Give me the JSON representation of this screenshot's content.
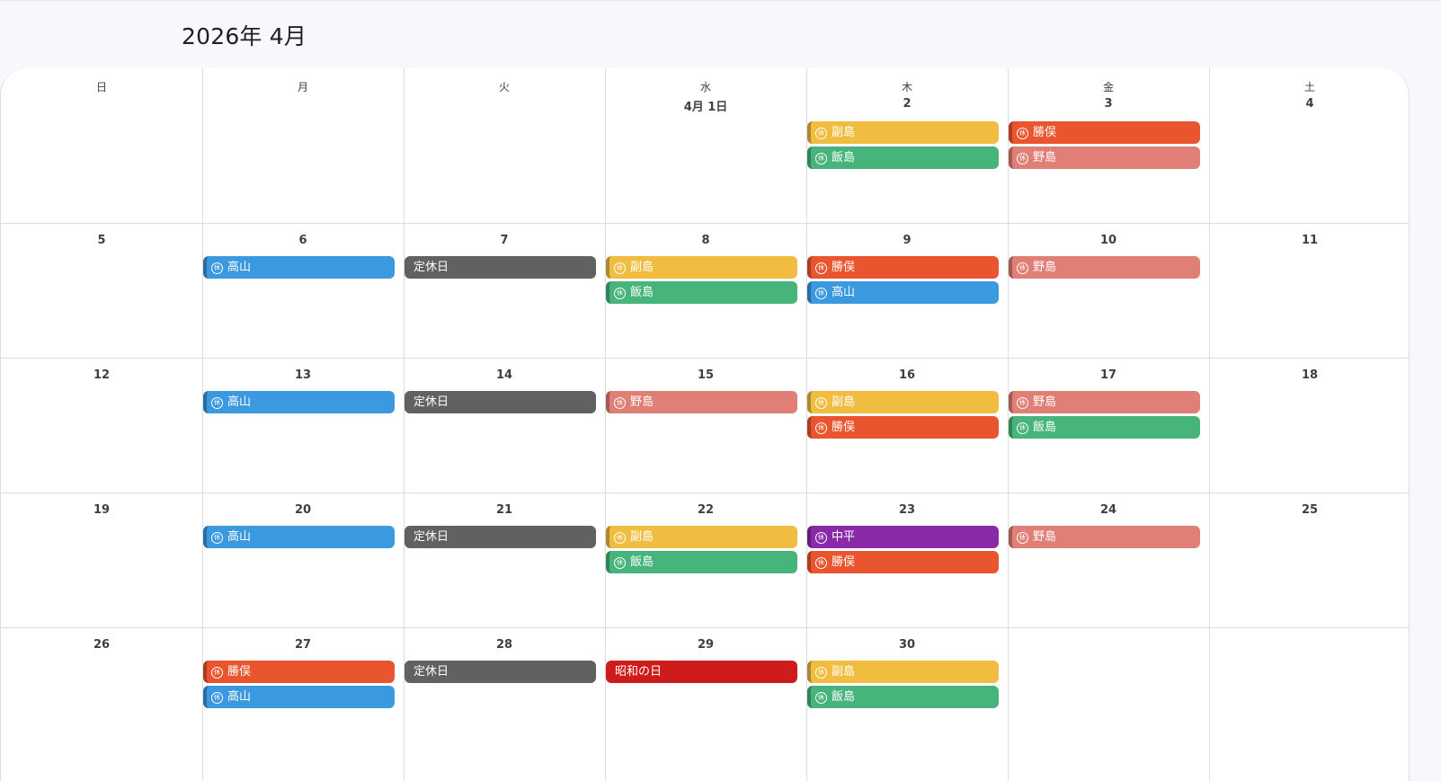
{
  "month_title": "2026年 4月",
  "weekdays": [
    "日",
    "月",
    "火",
    "水",
    "木",
    "金",
    "土"
  ],
  "colors": {
    "yellow": "#f0bd40",
    "green": "#47b47b",
    "orange": "#e9552f",
    "salmon": "#e07f76",
    "blue": "#3b99df",
    "gray": "#616161",
    "purple": "#8b2aa8",
    "red": "#ce1b1b"
  },
  "icon_char": "休",
  "weeks": [
    [
      {
        "day": ""
      },
      {
        "day": ""
      },
      {
        "day": ""
      },
      {
        "day": "4月 1日",
        "events": []
      },
      {
        "day": "2",
        "events": [
          {
            "label": "副島",
            "color": "yellow",
            "icon": true
          },
          {
            "label": "飯島",
            "color": "green",
            "icon": true
          }
        ]
      },
      {
        "day": "3",
        "events": [
          {
            "label": "勝俣",
            "color": "orange",
            "icon": true
          },
          {
            "label": "野島",
            "color": "salmon",
            "icon": true
          }
        ]
      },
      {
        "day": "4",
        "events": []
      }
    ],
    [
      {
        "day": "5",
        "events": []
      },
      {
        "day": "6",
        "events": [
          {
            "label": "高山",
            "color": "blue",
            "icon": true
          }
        ]
      },
      {
        "day": "7",
        "events": [
          {
            "label": "定休日",
            "color": "gray",
            "icon": false
          }
        ]
      },
      {
        "day": "8",
        "events": [
          {
            "label": "副島",
            "color": "yellow",
            "icon": true
          },
          {
            "label": "飯島",
            "color": "green",
            "icon": true
          }
        ]
      },
      {
        "day": "9",
        "events": [
          {
            "label": "勝俣",
            "color": "orange",
            "icon": true
          },
          {
            "label": "高山",
            "color": "blue",
            "icon": true
          }
        ]
      },
      {
        "day": "10",
        "events": [
          {
            "label": "野島",
            "color": "salmon",
            "icon": true
          }
        ]
      },
      {
        "day": "11",
        "events": []
      }
    ],
    [
      {
        "day": "12",
        "events": []
      },
      {
        "day": "13",
        "events": [
          {
            "label": "高山",
            "color": "blue",
            "icon": true
          }
        ]
      },
      {
        "day": "14",
        "events": [
          {
            "label": "定休日",
            "color": "gray",
            "icon": false
          }
        ]
      },
      {
        "day": "15",
        "events": [
          {
            "label": "野島",
            "color": "salmon",
            "icon": true
          }
        ]
      },
      {
        "day": "16",
        "events": [
          {
            "label": "副島",
            "color": "yellow",
            "icon": true
          },
          {
            "label": "勝俣",
            "color": "orange",
            "icon": true
          }
        ]
      },
      {
        "day": "17",
        "events": [
          {
            "label": "野島",
            "color": "salmon",
            "icon": true
          },
          {
            "label": "飯島",
            "color": "green",
            "icon": true
          }
        ]
      },
      {
        "day": "18",
        "events": []
      }
    ],
    [
      {
        "day": "19",
        "events": []
      },
      {
        "day": "20",
        "events": [
          {
            "label": "高山",
            "color": "blue",
            "icon": true
          }
        ]
      },
      {
        "day": "21",
        "events": [
          {
            "label": "定休日",
            "color": "gray",
            "icon": false
          }
        ]
      },
      {
        "day": "22",
        "events": [
          {
            "label": "副島",
            "color": "yellow",
            "icon": true
          },
          {
            "label": "飯島",
            "color": "green",
            "icon": true
          }
        ]
      },
      {
        "day": "23",
        "events": [
          {
            "label": "中平",
            "color": "purple",
            "icon": true
          },
          {
            "label": "勝俣",
            "color": "orange",
            "icon": true
          }
        ]
      },
      {
        "day": "24",
        "events": [
          {
            "label": "野島",
            "color": "salmon",
            "icon": true
          }
        ]
      },
      {
        "day": "25",
        "events": []
      }
    ],
    [
      {
        "day": "26",
        "events": []
      },
      {
        "day": "27",
        "events": [
          {
            "label": "勝俣",
            "color": "orange",
            "icon": true
          },
          {
            "label": "高山",
            "color": "blue",
            "icon": true
          }
        ]
      },
      {
        "day": "28",
        "events": [
          {
            "label": "定休日",
            "color": "gray",
            "icon": false
          }
        ]
      },
      {
        "day": "29",
        "events": [
          {
            "label": "昭和の日",
            "color": "red",
            "icon": false
          }
        ]
      },
      {
        "day": "30",
        "events": [
          {
            "label": "副島",
            "color": "yellow",
            "icon": true
          },
          {
            "label": "飯島",
            "color": "green",
            "icon": true
          }
        ]
      },
      {
        "day": ""
      },
      {
        "day": ""
      }
    ]
  ]
}
